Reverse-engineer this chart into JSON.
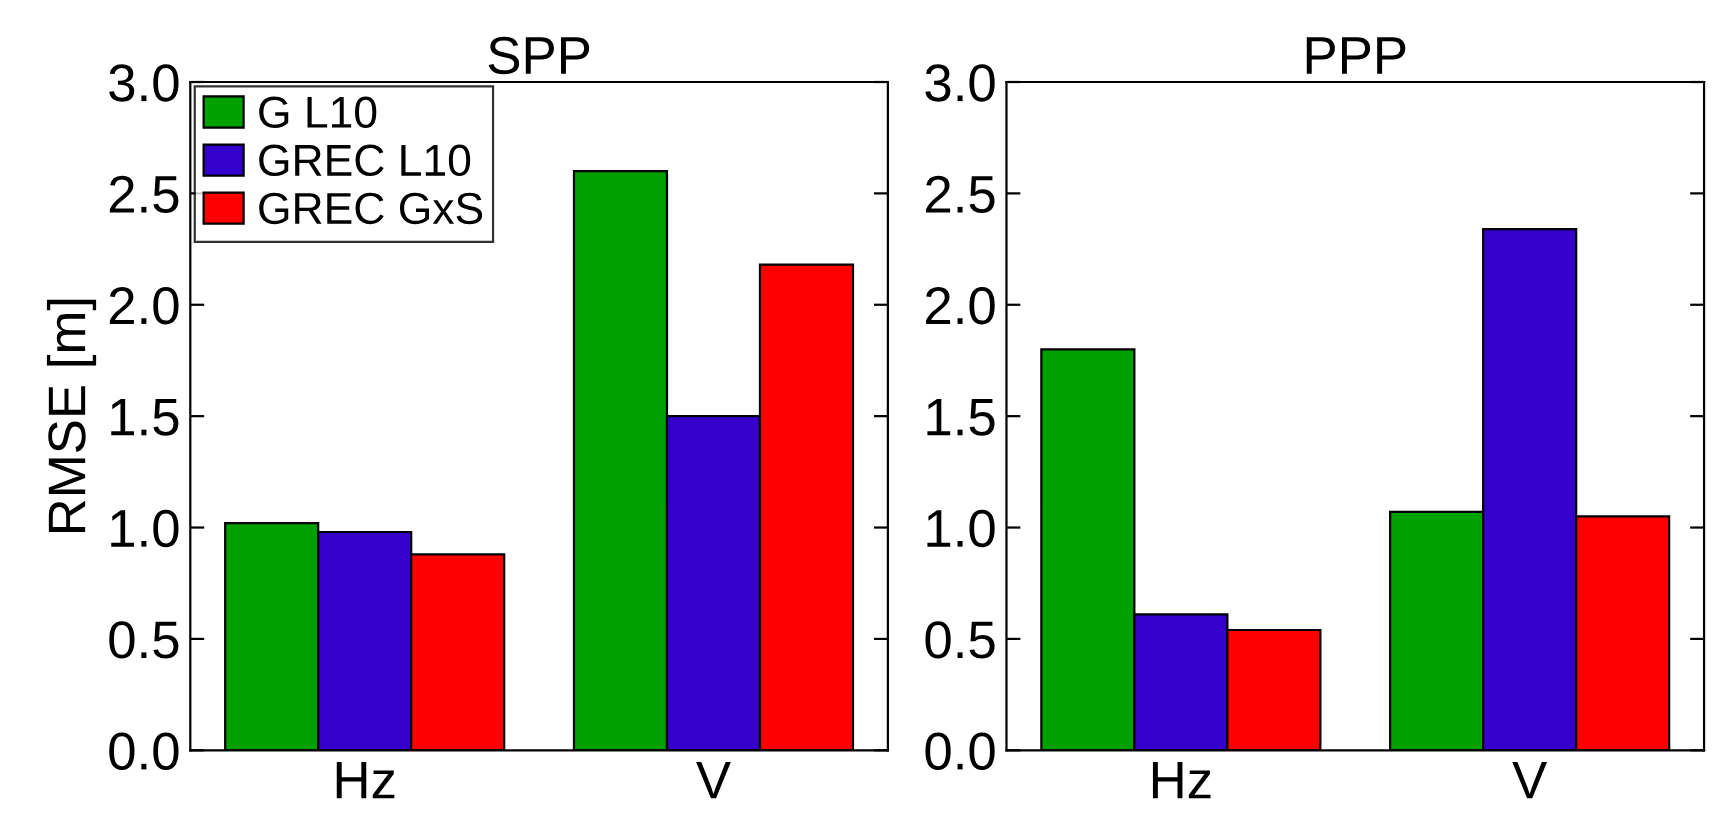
{
  "chart_data": [
    {
      "type": "bar",
      "title": "SPP",
      "ylabel": "RMSE [m]",
      "categories": [
        "Hz",
        "V"
      ],
      "series": [
        {
          "name": "G L10",
          "color": "#00a000",
          "values": [
            1.02,
            2.6
          ]
        },
        {
          "name": "GREC L10",
          "color": "#3300cc",
          "values": [
            0.98,
            1.5
          ]
        },
        {
          "name": "GREC GxS",
          "color": "#ff0000",
          "values": [
            0.88,
            2.18
          ]
        }
      ],
      "ylim": [
        0,
        3
      ],
      "yticks": [
        {
          "value": 0,
          "label": "0.0"
        },
        {
          "value": 0.5,
          "label": "0.5"
        },
        {
          "value": 1,
          "label": "1.0"
        },
        {
          "value": 1.5,
          "label": "1.5"
        },
        {
          "value": 2,
          "label": "2.0"
        },
        {
          "value": 2.5,
          "label": "2.5"
        },
        {
          "value": 3,
          "label": "3.0"
        }
      ],
      "grid": false,
      "legend": "top left"
    },
    {
      "type": "bar",
      "title": "PPP",
      "categories": [
        "Hz",
        "V"
      ],
      "series": [
        {
          "color": "#00a000",
          "values": [
            1.8,
            1.07
          ]
        },
        {
          "color": "#3300cc",
          "values": [
            0.61,
            2.34
          ]
        },
        {
          "color": "#ff0000",
          "values": [
            0.54,
            1.05
          ]
        }
      ],
      "ylim": [
        0,
        3
      ],
      "yticks": [
        {
          "value": 0,
          "label": "0.0"
        },
        {
          "value": 0.5,
          "label": "0.5"
        },
        {
          "value": 1,
          "label": "1.0"
        },
        {
          "value": 1.5,
          "label": "1.5"
        },
        {
          "value": 2,
          "label": "2.0"
        },
        {
          "value": 2.5,
          "label": "2.5"
        },
        {
          "value": 3,
          "label": "3.0"
        }
      ],
      "grid": false,
      "legend": false
    }
  ]
}
